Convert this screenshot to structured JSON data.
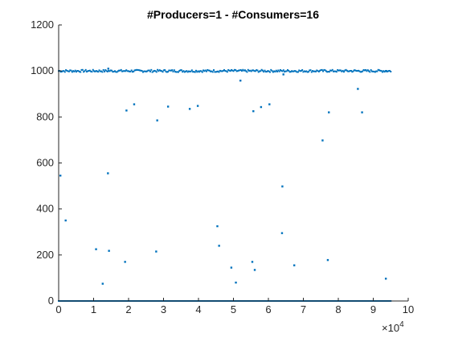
{
  "chart_data": {
    "type": "scatter",
    "title": "#Producers=1 - #Consumers=16",
    "xlabel": "",
    "ylabel": "",
    "xlim": [
      0,
      100000
    ],
    "ylim": [
      0,
      1200
    ],
    "x_ticks": [
      0,
      10000,
      20000,
      30000,
      40000,
      50000,
      60000,
      70000,
      80000,
      90000,
      100000
    ],
    "x_tick_labels": [
      "0",
      "1",
      "2",
      "3",
      "4",
      "5",
      "6",
      "7",
      "8",
      "9",
      "10"
    ],
    "x_exponent_base": "×10",
    "x_exponent_power": "4",
    "y_ticks": [
      0,
      200,
      400,
      600,
      800,
      1000,
      1200
    ],
    "y_tick_labels": [
      "0",
      "200",
      "400",
      "600",
      "800",
      "1000",
      "1200"
    ],
    "grid": false,
    "legend": "none",
    "series": [
      {
        "color": "#0072BD",
        "dense_bands": [
          {
            "x_start": 0,
            "x_end": 95000,
            "y": 1000,
            "jitter": 5
          },
          {
            "x_start": 0,
            "x_end": 95000,
            "y": 0,
            "jitter": 0
          }
        ],
        "x": [
          500,
          2000,
          10700,
          12600,
          14100,
          14400,
          19000,
          19400,
          21600,
          27900,
          28200,
          31300,
          37500,
          39800,
          45400,
          45900,
          49400,
          50700,
          52000,
          55400,
          55700,
          56100,
          57900,
          60300,
          63900,
          64000,
          64300,
          67400,
          75500,
          77000,
          77300,
          85600,
          86800,
          93600,
          14200,
          93700
        ],
        "y": [
          545,
          350,
          225,
          75,
          555,
          218,
          170,
          828,
          855,
          215,
          785,
          845,
          835,
          848,
          325,
          240,
          145,
          80,
          958,
          170,
          825,
          135,
          843,
          855,
          295,
          498,
          985,
          155,
          698,
          178,
          820,
          922,
          820,
          97,
          1010,
          1000
        ]
      }
    ]
  }
}
